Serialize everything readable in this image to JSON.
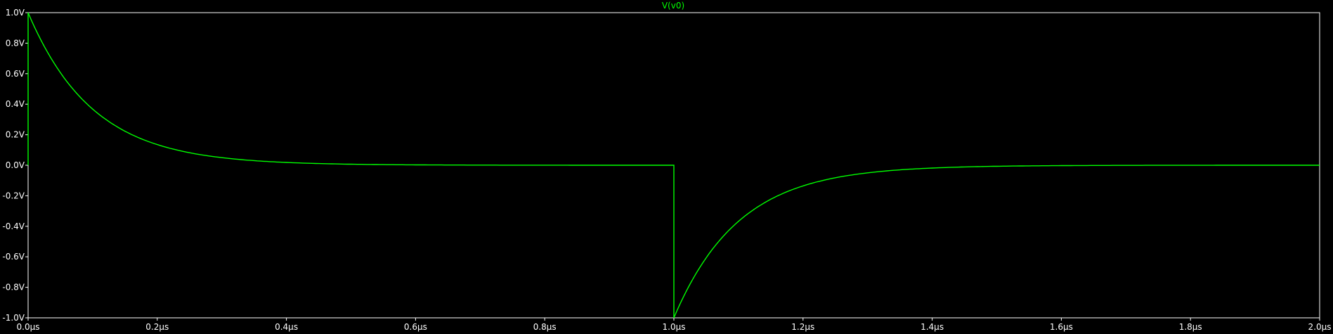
{
  "chart_data": {
    "type": "line",
    "title": "V(v0)",
    "xlabel": "",
    "ylabel": "",
    "xlim": [
      0,
      2.0
    ],
    "ylim": [
      -1.0,
      1.0
    ],
    "x_unit": "µs",
    "y_unit": "V",
    "grid": false,
    "x_ticks": [
      "0.0µs",
      "0.2µs",
      "0.4µs",
      "0.6µs",
      "0.8µs",
      "1.0µs",
      "1.2µs",
      "1.4µs",
      "1.6µs",
      "1.8µs",
      "2.0µs"
    ],
    "y_ticks": [
      "1.0V",
      "0.8V",
      "0.6V",
      "0.4V",
      "0.2V",
      "0.0V",
      "-0.2V",
      "-0.4V",
      "-0.6V",
      "-0.8V",
      "-1.0V"
    ],
    "series": [
      {
        "name": "V(v0)",
        "color": "#00ff00",
        "x": [
          0.0,
          0.0,
          0.02,
          0.05,
          0.1,
          0.15,
          0.2,
          0.3,
          0.4,
          0.5,
          0.6,
          0.8,
          1.0,
          1.0,
          1.02,
          1.05,
          1.1,
          1.15,
          1.2,
          1.3,
          1.4,
          1.5,
          1.6,
          1.8,
          2.0
        ],
        "y": [
          0.0,
          1.0,
          0.82,
          0.61,
          0.37,
          0.22,
          0.14,
          0.05,
          0.02,
          0.01,
          0.0,
          0.0,
          0.0,
          -1.0,
          -0.82,
          -0.61,
          -0.37,
          -0.22,
          -0.14,
          -0.05,
          -0.02,
          -0.01,
          0.0,
          0.0,
          0.0
        ]
      }
    ]
  },
  "colors": {
    "background": "#000000",
    "axis": "#ffffff",
    "text": "#ffffff",
    "trace": "#00ff00"
  }
}
